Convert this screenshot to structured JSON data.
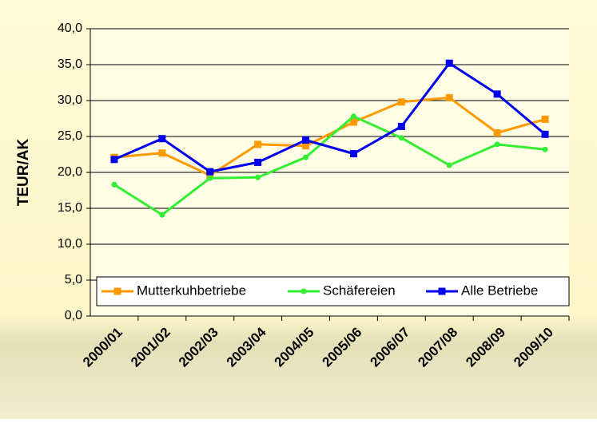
{
  "chart_data": {
    "type": "line",
    "y_label": "TEUR/AK",
    "categories": [
      "2000/01",
      "2001/02",
      "2002/03",
      "2003/04",
      "2004/05",
      "2005/06",
      "2006/07",
      "2007/08",
      "2008/09",
      "2009/10"
    ],
    "series": [
      {
        "name": "Mutterkuhbetriebe",
        "color": "#ff9900",
        "marker": "square",
        "values": [
          22.1,
          22.7,
          19.6,
          23.9,
          23.7,
          27.0,
          29.8,
          30.4,
          25.5,
          27.4
        ]
      },
      {
        "name": "Schäfereien",
        "color": "#33ee33",
        "marker": "circle",
        "values": [
          18.3,
          14.1,
          19.2,
          19.3,
          22.1,
          27.8,
          24.8,
          21.0,
          23.9,
          23.2
        ]
      },
      {
        "name": "Alle Betriebe",
        "color": "#0000ee",
        "marker": "square",
        "values": [
          21.8,
          24.7,
          20.1,
          21.4,
          24.5,
          22.6,
          26.4,
          35.2,
          30.9,
          25.3
        ]
      }
    ],
    "ylim": [
      0,
      40
    ],
    "yticks": [
      {
        "value": 0,
        "label": "0,0"
      },
      {
        "value": 5,
        "label": "5,0"
      },
      {
        "value": 10,
        "label": "10,0"
      },
      {
        "value": 15,
        "label": "15,0"
      },
      {
        "value": 20,
        "label": "20,0"
      },
      {
        "value": 25,
        "label": "25,0"
      },
      {
        "value": 30,
        "label": "30,0"
      },
      {
        "value": 35,
        "label": "35,0"
      },
      {
        "value": 40,
        "label": "40,0"
      }
    ],
    "grid": true,
    "legend": "bottom"
  }
}
